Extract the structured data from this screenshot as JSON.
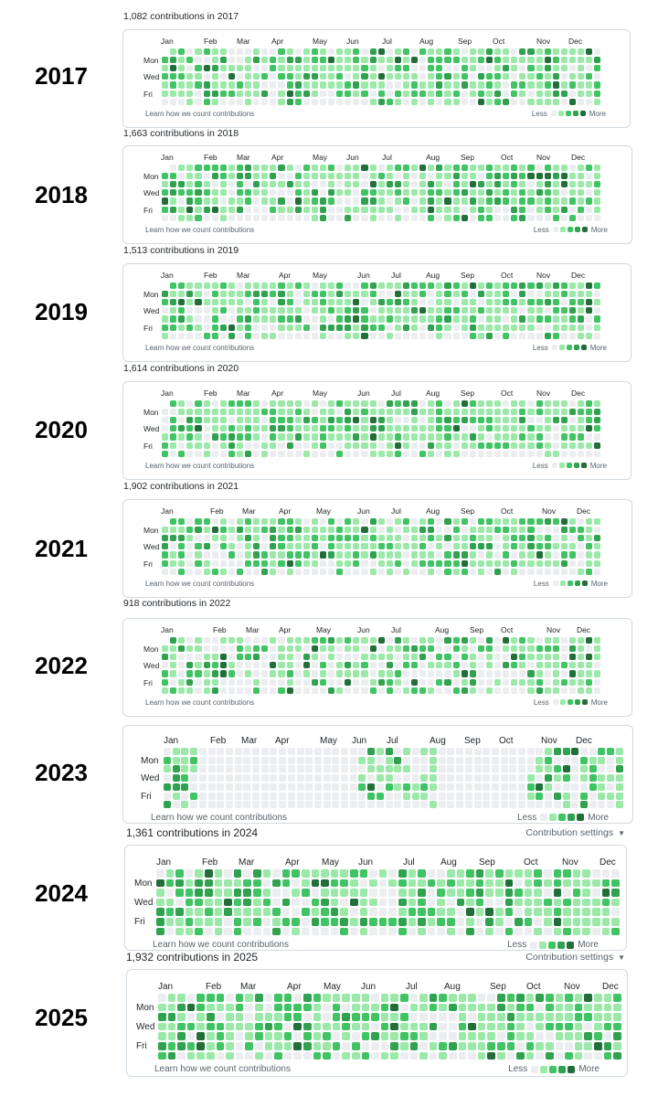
{
  "palette": [
    "#ebedf0",
    "#9be9a8",
    "#40c463",
    "#30a14e",
    "#216e39"
  ],
  "footer": {
    "learn_label": "Learn how we count contributions",
    "less_label": "Less",
    "more_label": "More",
    "settings_label": "Contribution settings"
  },
  "day_labels": [
    "Mon",
    "Wed",
    "Fri"
  ],
  "years": [
    {
      "year_label": "2017",
      "title": "1,082 contributions in 2017",
      "show_settings": false,
      "months": [
        "Jan",
        "Feb",
        "Mar",
        "Apr",
        "May",
        "Jun",
        "Jul",
        "Aug",
        "Sep",
        "Oct",
        "Nov",
        "Dec"
      ]
    },
    {
      "year_label": "2018",
      "title": "1,663 contributions in 2018",
      "show_settings": false,
      "months": [
        "Jan",
        "Feb",
        "Mar",
        "Apr",
        "May",
        "Jun",
        "Jul",
        "Aug",
        "Sep",
        "Oct",
        "Nov",
        "Dec"
      ]
    },
    {
      "year_label": "2019",
      "title": "1,513 contributions in 2019",
      "show_settings": false,
      "months": [
        "Jan",
        "Feb",
        "Mar",
        "Apr",
        "May",
        "Jun",
        "Jul",
        "Aug",
        "Sep",
        "Oct",
        "Nov",
        "Dec"
      ]
    },
    {
      "year_label": "2020",
      "title": "1,614 contributions in 2020",
      "show_settings": false,
      "months": [
        "Jan",
        "Feb",
        "Mar",
        "Apr",
        "May",
        "Jun",
        "Jul",
        "Aug",
        "Sep",
        "Oct",
        "Nov",
        "Dec"
      ]
    },
    {
      "year_label": "2021",
      "title": "1,902 contributions in 2021",
      "show_settings": false,
      "months": [
        "Jan",
        "Feb",
        "Mar",
        "Apr",
        "May",
        "Jun",
        "Jul",
        "Aug",
        "Sep",
        "Oct",
        "Nov",
        "Dec"
      ]
    },
    {
      "year_label": "2022",
      "title": "918 contributions in 2022",
      "show_settings": false,
      "months": [
        "Jan",
        "Feb",
        "Mar",
        "Apr",
        "May",
        "Jun",
        "Jul",
        "Aug",
        "Sep",
        "Oct",
        "Nov",
        "Dec"
      ]
    },
    {
      "year_label": "2023",
      "title": "",
      "show_settings": false,
      "months": [
        "Jan",
        "Feb",
        "Mar",
        "Apr",
        "May",
        "Jun",
        "Jul",
        "Aug",
        "Sep",
        "Oct",
        "Nov",
        "Dec"
      ]
    },
    {
      "year_label": "2024",
      "title": "1,361 contributions in 2024",
      "show_settings": true,
      "months": [
        "Jan",
        "Feb",
        "Mar",
        "Apr",
        "May",
        "Jun",
        "Jul",
        "Aug",
        "Sep",
        "Oct",
        "Nov",
        "Dec"
      ]
    },
    {
      "year_label": "2025",
      "title": "1,932 contributions in 2025",
      "show_settings": true,
      "months": [
        "Jan",
        "Feb",
        "Mar",
        "Apr",
        "May",
        "Jun",
        "Jul",
        "Aug",
        "Sep",
        "Oct",
        "Nov",
        "Dec"
      ]
    }
  ]
}
